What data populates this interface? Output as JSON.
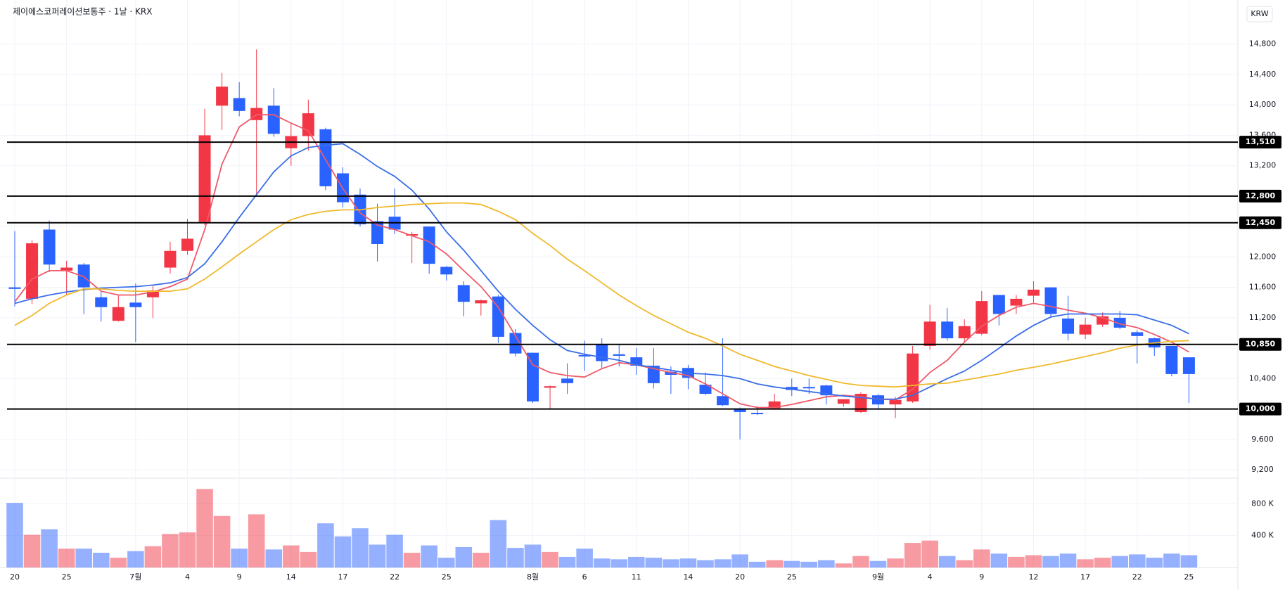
{
  "header": {
    "title": "제이에스코퍼레이션보통주 · 1날 · KRX",
    "currency": "KRW"
  },
  "chart_data": {
    "type": "candlestick",
    "categories": [
      "20",
      null,
      null,
      "25",
      null,
      null,
      null,
      "7월",
      null,
      null,
      "4",
      null,
      null,
      "9",
      null,
      null,
      "14",
      null,
      null,
      "17",
      null,
      null,
      "22",
      null,
      null,
      "25",
      null,
      null,
      null,
      null,
      "8월",
      null,
      null,
      "6",
      null,
      null,
      "11",
      null,
      null,
      "14",
      null,
      null,
      "20",
      null,
      null,
      "25",
      null,
      null,
      null,
      null,
      "9월",
      null,
      null,
      "4",
      null,
      null,
      "9",
      null,
      null,
      "12",
      null,
      null,
      "17",
      null,
      null,
      "22",
      null,
      null,
      "25"
    ],
    "open": [
      11600,
      11450,
      12360,
      11820,
      11900,
      11470,
      11160,
      11400,
      11470,
      11860,
      12080,
      12460,
      13990,
      14090,
      13800,
      13990,
      13430,
      13590,
      13680,
      13100,
      12820,
      12470,
      12530,
      12280,
      12400,
      11870,
      11630,
      11390,
      11480,
      11000,
      10740,
      10280,
      10400,
      10710,
      10850,
      10720,
      10680,
      10570,
      10490,
      10540,
      10320,
      10170,
      10000,
      9950,
      10010,
      10290,
      10290,
      10310,
      10070,
      9960,
      10180,
      10060,
      10100,
      10830,
      11150,
      10930,
      10990,
      11500,
      11360,
      11490,
      11600,
      11190,
      10980,
      11110,
      11200,
      11010,
      10930,
      10830,
      10680
    ],
    "high": [
      12340,
      12220,
      12480,
      11950,
      11920,
      11550,
      11500,
      11650,
      11620,
      12200,
      12500,
      13950,
      14420,
      14300,
      14730,
      14220,
      13750,
      14070,
      13700,
      13180,
      12900,
      12700,
      12900,
      12330,
      12400,
      11880,
      11680,
      11440,
      11500,
      11050,
      10740,
      10310,
      10600,
      10900,
      10930,
      10850,
      10800,
      10800,
      10560,
      10580,
      10480,
      10930,
      10020,
      10040,
      10200,
      10400,
      10400,
      10320,
      10130,
      10220,
      10200,
      10160,
      10830,
      11370,
      11330,
      11180,
      11550,
      11500,
      11500,
      11680,
      11600,
      11490,
      11200,
      11270,
      11290,
      11040,
      10940,
      10830,
      10680
    ],
    "low": [
      11350,
      11380,
      11800,
      11500,
      11250,
      11150,
      11150,
      10880,
      11200,
      11780,
      12030,
      12420,
      13670,
      13850,
      12830,
      13580,
      13200,
      13400,
      12880,
      12650,
      12400,
      11940,
      12300,
      11920,
      11780,
      11690,
      11220,
      11230,
      10870,
      10690,
      10080,
      10000,
      10200,
      10500,
      10530,
      10560,
      10450,
      10270,
      10200,
      10260,
      10180,
      10040,
      9600,
      9920,
      9990,
      10170,
      10200,
      10060,
      10030,
      9950,
      10010,
      9880,
      10080,
      10780,
      10900,
      10870,
      10970,
      11100,
      11250,
      11400,
      11210,
      10900,
      10920,
      11080,
      11050,
      10600,
      10700,
      10430,
      10080
    ],
    "close": [
      11580,
      12180,
      11900,
      11860,
      11600,
      11340,
      11340,
      11340,
      11560,
      12080,
      12240,
      13600,
      14240,
      13920,
      13960,
      13620,
      13590,
      13890,
      12930,
      12720,
      12430,
      12170,
      12360,
      12300,
      11910,
      11770,
      11410,
      11430,
      10950,
      10730,
      10100,
      10300,
      10340,
      10700,
      10630,
      10700,
      10570,
      10340,
      10450,
      10410,
      10200,
      10050,
      9960,
      9940,
      10100,
      10250,
      10280,
      10180,
      10130,
      10200,
      10060,
      10120,
      10730,
      11150,
      10930,
      11090,
      11420,
      11250,
      11450,
      11570,
      11250,
      10990,
      11110,
      11220,
      11070,
      10960,
      10810,
      10460,
      10460
    ],
    "up_color": "#f23645",
    "down_color": "#2962ff",
    "lines": [
      {
        "color": "#ef5a6a",
        "values": [
          11410,
          11710,
          11820,
          11820,
          11740,
          11550,
          11500,
          11500,
          11540,
          11610,
          11710,
          12360,
          13220,
          13710,
          13870,
          13870,
          13760,
          13660,
          13280,
          12900,
          12580,
          12420,
          12360,
          12280,
          12200,
          12040,
          11820,
          11610,
          11340,
          10960,
          10580,
          10480,
          10440,
          10420,
          10530,
          10610,
          10580,
          10530,
          10480,
          10440,
          10330,
          10200,
          10070,
          10020,
          10020,
          10060,
          10110,
          10160,
          10180,
          10160,
          10130,
          10120,
          10260,
          10480,
          10640,
          10880,
          11090,
          11230,
          11340,
          11390,
          11350,
          11300,
          11260,
          11200,
          11120,
          11070,
          10980,
          10880,
          10750
        ]
      },
      {
        "color": "#3a6ee8",
        "values": [
          11390,
          11450,
          11500,
          11540,
          11570,
          11590,
          11600,
          11610,
          11630,
          11660,
          11730,
          11910,
          12200,
          12520,
          12820,
          13120,
          13330,
          13440,
          13470,
          13490,
          13350,
          13190,
          13060,
          12880,
          12630,
          12330,
          12090,
          11820,
          11550,
          11310,
          11100,
          10910,
          10770,
          10720,
          10680,
          10640,
          10580,
          10550,
          10510,
          10470,
          10460,
          10440,
          10400,
          10330,
          10290,
          10260,
          10230,
          10200,
          10170,
          10150,
          10130,
          10130,
          10180,
          10290,
          10400,
          10500,
          10640,
          10800,
          10960,
          11100,
          11210,
          11250,
          11250,
          11250,
          11250,
          11240,
          11170,
          11100,
          10990
        ]
      },
      {
        "color": "#f0b92b",
        "values": [
          11100,
          11230,
          11390,
          11500,
          11580,
          11580,
          11560,
          11550,
          11550,
          11550,
          11580,
          11710,
          11870,
          12040,
          12200,
          12360,
          12490,
          12560,
          12600,
          12620,
          12620,
          12650,
          12670,
          12690,
          12700,
          12710,
          12710,
          12690,
          12600,
          12490,
          12310,
          12150,
          11970,
          11820,
          11660,
          11500,
          11360,
          11230,
          11120,
          11010,
          10930,
          10830,
          10720,
          10640,
          10560,
          10500,
          10440,
          10390,
          10340,
          10310,
          10300,
          10290,
          10310,
          10330,
          10340,
          10380,
          10420,
          10460,
          10510,
          10550,
          10590,
          10640,
          10690,
          10740,
          10800,
          10840,
          10870,
          10890,
          10900
        ]
      }
    ],
    "ylim": [
      9090,
      15380
    ],
    "yticks": [
      {
        "value": 9200,
        "label": "9,200"
      },
      {
        "value": 9600,
        "label": "9,600"
      },
      {
        "value": 10000,
        "label": "10,000"
      },
      {
        "value": 10400,
        "label": "10,400"
      },
      {
        "value": 10800,
        "label": "10,800"
      },
      {
        "value": 11200,
        "label": "11,200"
      },
      {
        "value": 11600,
        "label": "11,600"
      },
      {
        "value": 12000,
        "label": "12,000"
      },
      {
        "value": 12400,
        "label": "12,400"
      },
      {
        "value": 12800,
        "label": "12,800"
      },
      {
        "value": 13200,
        "label": "13,200"
      },
      {
        "value": 13600,
        "label": "13,600"
      },
      {
        "value": 14000,
        "label": "14,000"
      },
      {
        "value": 14400,
        "label": "14,400"
      },
      {
        "value": 14800,
        "label": "14,800"
      }
    ],
    "hlines": [
      {
        "value": 13510,
        "label": "13,510"
      },
      {
        "value": 12800,
        "label": "12,800"
      },
      {
        "value": 12450,
        "label": "12,450"
      },
      {
        "value": 10850,
        "label": "10,850"
      },
      {
        "value": 10000,
        "label": "10,000"
      }
    ],
    "volume": {
      "values": [
        810000,
        410000,
        480000,
        236000,
        236000,
        185000,
        123000,
        205000,
        267000,
        420000,
        440000,
        985000,
        646000,
        236000,
        667000,
        226000,
        277000,
        195000,
        554000,
        390000,
        492000,
        287000,
        410000,
        185000,
        277000,
        123000,
        256000,
        185000,
        595000,
        246000,
        287000,
        195000,
        133000,
        236000,
        113000,
        103000,
        133000,
        123000,
        103000,
        113000,
        92000,
        103000,
        164000,
        72000,
        92000,
        82000,
        72000,
        92000,
        51000,
        144000,
        82000,
        113000,
        308000,
        338000,
        144000,
        92000,
        226000,
        174000,
        133000,
        154000,
        144000,
        174000,
        103000,
        123000,
        144000,
        164000,
        123000,
        174000,
        154000
      ],
      "ylim": [
        0,
        1120000
      ],
      "yticks": [
        {
          "value": 400000,
          "label": "400 K"
        },
        {
          "value": 800000,
          "label": "800 K"
        }
      ]
    },
    "grid": true
  }
}
